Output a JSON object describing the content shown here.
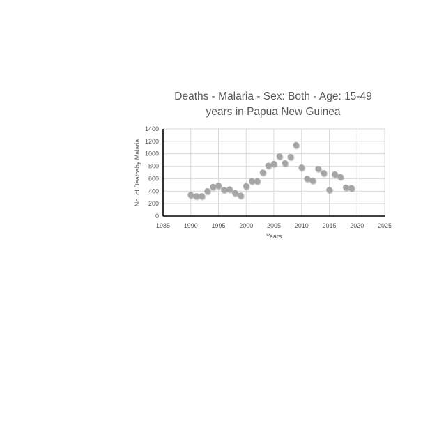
{
  "chart_data": {
    "type": "scatter",
    "title_lines": [
      "Deaths - Malaria - Sex: Both - Age: 15-49",
      "years in Papua New Guinea"
    ],
    "xlabel": "Years",
    "ylabel": "No. of Deathsby Malaria",
    "xlim": [
      1985,
      2025
    ],
    "ylim": [
      0,
      1400
    ],
    "xticks": [
      1985,
      1990,
      1995,
      2000,
      2005,
      2010,
      2015,
      2020,
      2025
    ],
    "yticks": [
      0,
      200,
      400,
      600,
      800,
      1000,
      1200,
      1400
    ],
    "grid": true,
    "legend": "none",
    "marker_color": "#a5a5a5",
    "points": [
      {
        "x": 1990,
        "y": 340
      },
      {
        "x": 1991,
        "y": 320
      },
      {
        "x": 1992,
        "y": 320
      },
      {
        "x": 1993,
        "y": 400
      },
      {
        "x": 1994,
        "y": 470
      },
      {
        "x": 1995,
        "y": 490
      },
      {
        "x": 1996,
        "y": 420
      },
      {
        "x": 1997,
        "y": 430
      },
      {
        "x": 1998,
        "y": 370
      },
      {
        "x": 1999,
        "y": 330
      },
      {
        "x": 2000,
        "y": 480
      },
      {
        "x": 2001,
        "y": 560
      },
      {
        "x": 2002,
        "y": 560
      },
      {
        "x": 2003,
        "y": 700
      },
      {
        "x": 2004,
        "y": 810
      },
      {
        "x": 2005,
        "y": 840
      },
      {
        "x": 2006,
        "y": 960
      },
      {
        "x": 2007,
        "y": 850
      },
      {
        "x": 2008,
        "y": 950
      },
      {
        "x": 2009,
        "y": 1140
      },
      {
        "x": 2010,
        "y": 780
      },
      {
        "x": 2011,
        "y": 600
      },
      {
        "x": 2012,
        "y": 570
      },
      {
        "x": 2013,
        "y": 760
      },
      {
        "x": 2014,
        "y": 690
      },
      {
        "x": 2015,
        "y": 420
      },
      {
        "x": 2016,
        "y": 670
      },
      {
        "x": 2017,
        "y": 630
      },
      {
        "x": 2018,
        "y": 460
      },
      {
        "x": 2019,
        "y": 450
      }
    ]
  }
}
